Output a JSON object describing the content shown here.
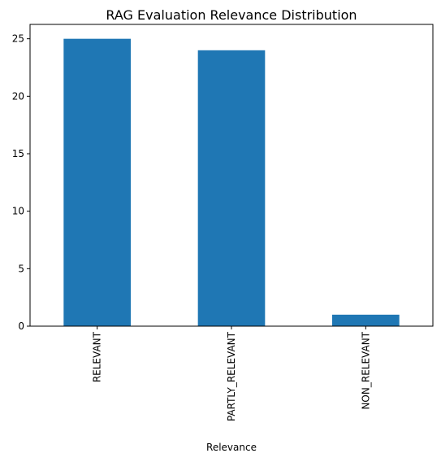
{
  "chart_data": {
    "type": "bar",
    "title": "RAG Evaluation Relevance Distribution",
    "xlabel": "Relevance",
    "ylabel": "",
    "categories": [
      "RELEVANT",
      "PARTLY_RELEVANT",
      "NON_RELEVANT"
    ],
    "values": [
      25,
      24,
      1
    ],
    "ylim": [
      0,
      26.25
    ],
    "yticks": [
      0,
      5,
      10,
      15,
      20,
      25
    ],
    "bar_color": "#1f77b4",
    "grid": false,
    "legend": "none",
    "tick_label_rotation": "vertical"
  }
}
